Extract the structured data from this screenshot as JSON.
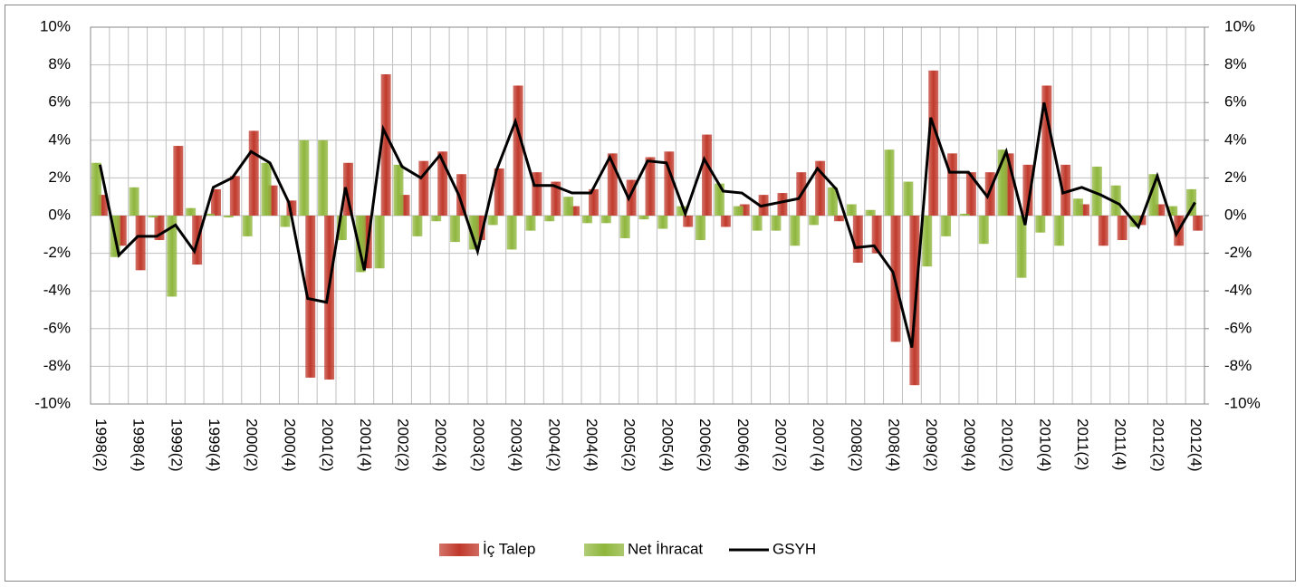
{
  "chart_data": {
    "type": "bar-line",
    "categories": [
      "1998(2)",
      null,
      "1998(4)",
      null,
      "1999(2)",
      null,
      "1999(4)",
      null,
      "2000(2)",
      null,
      "2000(4)",
      null,
      "2001(2)",
      null,
      "2001(4)",
      null,
      "2002(2)",
      null,
      "2002(4)",
      null,
      "2003(2)",
      null,
      "2003(4)",
      null,
      "2004(2)",
      null,
      "2004(4)",
      null,
      "2005(2)",
      null,
      "2005(4)",
      null,
      "2006(2)",
      null,
      "2006(4)",
      null,
      "2007(2)",
      null,
      "2007(4)",
      null,
      "2008(2)",
      null,
      "2008(4)",
      null,
      "2009(2)",
      null,
      "2009(4)",
      null,
      "2010(2)",
      null,
      "2010(4)",
      null,
      "2011(2)",
      null,
      "2011(4)",
      null,
      "2012(2)",
      null,
      "2012(4)"
    ],
    "series": [
      {
        "name": "İç Talep",
        "type": "bar",
        "color": "#c0392b",
        "values": [
          1.1,
          -1.6,
          -2.9,
          -1.3,
          3.7,
          -2.6,
          1.4,
          2.1,
          4.5,
          1.6,
          0.8,
          -8.6,
          -8.7,
          2.8,
          -2.8,
          7.5,
          1.1,
          2.9,
          3.4,
          2.2,
          -1.3,
          2.5,
          6.9,
          2.3,
          1.8,
          0.5,
          1.4,
          3.3,
          1.9,
          3.1,
          3.4,
          -0.6,
          4.3,
          -0.6,
          0.6,
          1.1,
          1.2,
          2.3,
          2.9,
          -0.3,
          -2.5,
          -2.0,
          -6.7,
          -9.0,
          7.7,
          3.3,
          2.3,
          2.3,
          3.3,
          2.7,
          6.9,
          2.7,
          0.6,
          -1.6,
          -1.3,
          -0.5,
          0.6,
          -1.6,
          -0.8
        ]
      },
      {
        "name": "Net İhracat",
        "type": "bar",
        "color": "#8fb63c",
        "values": [
          2.8,
          -2.2,
          1.5,
          -0.1,
          -4.3,
          0.4,
          0.1,
          -0.1,
          -1.1,
          2.8,
          -0.6,
          4.0,
          4.0,
          -1.3,
          -3.0,
          -2.8,
          2.7,
          -1.1,
          -0.3,
          -1.4,
          -1.8,
          -0.5,
          -1.8,
          -0.8,
          -0.3,
          1.0,
          -0.4,
          -0.4,
          -1.2,
          -0.2,
          -0.7,
          0.5,
          -1.3,
          1.7,
          0.5,
          -0.8,
          -0.8,
          -1.6,
          -0.5,
          1.5,
          0.6,
          0.3,
          3.5,
          1.8,
          -2.7,
          -1.1,
          0.1,
          -1.5,
          3.5,
          -3.3,
          -0.9,
          -1.6,
          0.9,
          2.6,
          1.6,
          -0.6,
          2.2,
          0.5,
          1.4
        ]
      },
      {
        "name": "GSYH",
        "type": "line",
        "color": "#000000",
        "values": [
          2.7,
          -2.1,
          -1.1,
          -1.1,
          -0.5,
          -1.9,
          1.5,
          2.0,
          3.4,
          2.8,
          0.7,
          -4.4,
          -4.6,
          1.5,
          -2.9,
          4.6,
          2.6,
          2.0,
          3.2,
          1.1,
          -1.9,
          2.4,
          5.0,
          1.6,
          1.6,
          1.2,
          1.2,
          3.1,
          0.9,
          2.9,
          2.8,
          0.1,
          3.0,
          1.3,
          1.2,
          0.5,
          0.7,
          0.9,
          2.5,
          1.4,
          -1.7,
          -1.6,
          -3.0,
          -7.0,
          5.2,
          2.3,
          2.3,
          1.0,
          3.4,
          -0.5,
          6.0,
          1.2,
          1.5,
          1.1,
          0.6,
          -0.6,
          2.1,
          -1.0,
          0.7
        ]
      }
    ],
    "ylim": [
      -10,
      10
    ],
    "yticks": [
      {
        "value": -10,
        "label": "-10%"
      },
      {
        "value": -8,
        "label": "-8%"
      },
      {
        "value": -6,
        "label": "-6%"
      },
      {
        "value": -4,
        "label": "-4%"
      },
      {
        "value": -2,
        "label": "-2%"
      },
      {
        "value": 0,
        "label": "0%"
      },
      {
        "value": 2,
        "label": "2%"
      },
      {
        "value": 4,
        "label": "4%"
      },
      {
        "value": 6,
        "label": "6%"
      },
      {
        "value": 8,
        "label": "8%"
      },
      {
        "value": 10,
        "label": "10%"
      }
    ],
    "y2lim": [
      -10,
      10
    ],
    "y2ticks": [
      {
        "value": -10,
        "label": "-10%"
      },
      {
        "value": -8,
        "label": "-8%"
      },
      {
        "value": -6,
        "label": "-6%"
      },
      {
        "value": -4,
        "label": "-4%"
      },
      {
        "value": -2,
        "label": "-2%"
      },
      {
        "value": 0,
        "label": "0%"
      },
      {
        "value": 2,
        "label": "2%"
      },
      {
        "value": 4,
        "label": "4%"
      },
      {
        "value": 6,
        "label": "6%"
      },
      {
        "value": 8,
        "label": "8%"
      },
      {
        "value": 10,
        "label": "10%"
      }
    ],
    "grid": true,
    "legend": "bottom"
  }
}
